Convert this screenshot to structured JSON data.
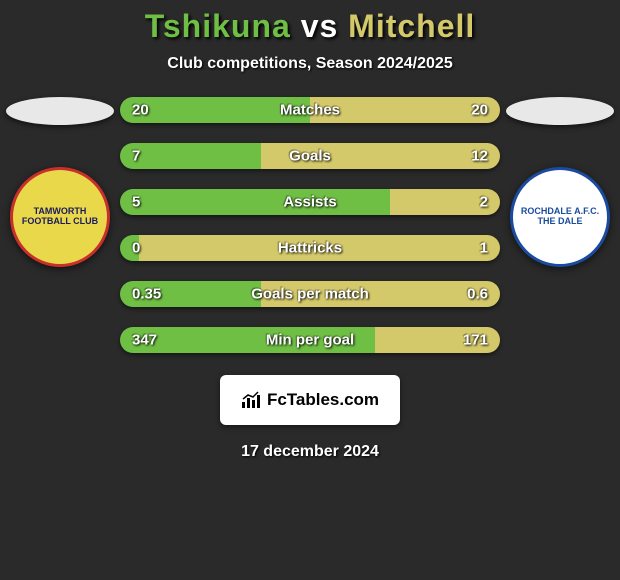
{
  "title": {
    "player1": "Tshikuna",
    "vs": " vs ",
    "player2": "Mitchell",
    "player1_color": "#6fbf44",
    "player2_color": "#d4c96a"
  },
  "subtitle": "Club competitions, Season 2024/2025",
  "left_oval_color": "#e8e8e8",
  "right_oval_color": "#e8e8e8",
  "left_club": {
    "name": "TAMWORTH FOOTBALL CLUB",
    "bg": "#e8d84a",
    "border": "#c9302c",
    "text_color": "#1a1a5e"
  },
  "right_club": {
    "name": "ROCHDALE A.F.C. THE DALE",
    "bg": "#ffffff",
    "border": "#1a4b9e",
    "text_color": "#1a4b9e"
  },
  "stats": [
    {
      "label": "Matches",
      "left_value": "20",
      "right_value": "20",
      "left_pct": 50,
      "right_pct": 50
    },
    {
      "label": "Goals",
      "left_value": "7",
      "right_value": "12",
      "left_pct": 37,
      "right_pct": 63
    },
    {
      "label": "Assists",
      "left_value": "5",
      "right_value": "2",
      "left_pct": 71,
      "right_pct": 29
    },
    {
      "label": "Hattricks",
      "left_value": "0",
      "right_value": "1",
      "left_pct": 5,
      "right_pct": 95
    },
    {
      "label": "Goals per match",
      "left_value": "0.35",
      "right_value": "0.6",
      "left_pct": 37,
      "right_pct": 63
    },
    {
      "label": "Min per goal",
      "left_value": "347",
      "right_value": "171",
      "left_pct": 67,
      "right_pct": 33
    }
  ],
  "bar_colors": {
    "left": "#6fbf44",
    "right": "#d4c96a"
  },
  "footer_logo": "FcTables.com",
  "date": "17 december 2024",
  "background_color": "#2a2a2a"
}
